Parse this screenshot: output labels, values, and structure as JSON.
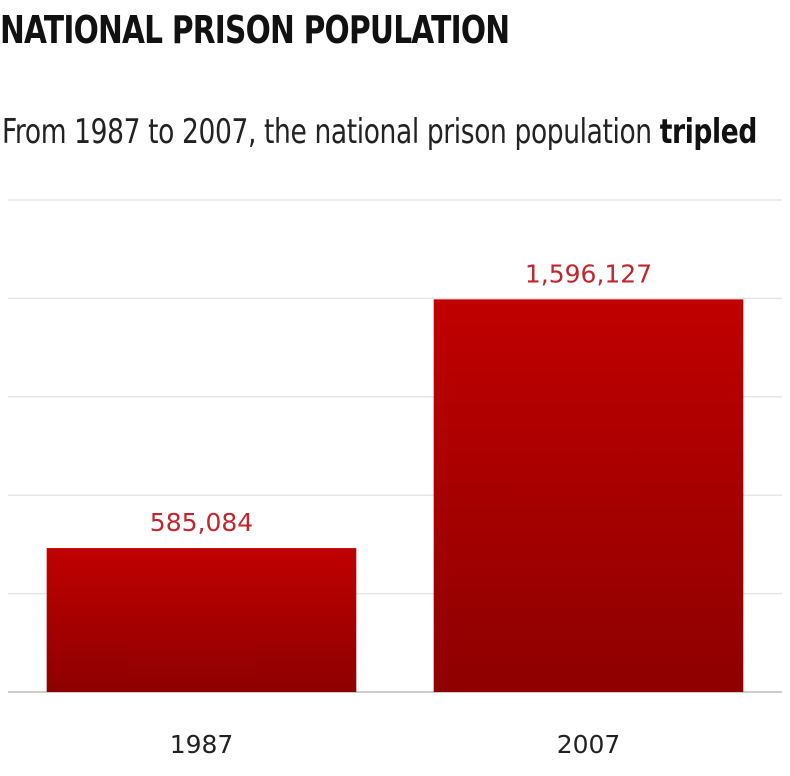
{
  "header": {
    "title": "NATIONAL PRISON POPULATION",
    "subtitle_prefix": "From 1987 to 2007, the national prison population ",
    "subtitle_emphasis": "tripled"
  },
  "colors": {
    "bar_top": "#c00000",
    "bar_bottom": "#8e0000",
    "value_label": "#c0262d",
    "gridline": "#e6e6e6",
    "baseline": "#cccccc",
    "tick_text": "#222222"
  },
  "chart_data": {
    "type": "bar",
    "title": "NATIONAL PRISON POPULATION",
    "subtitle": "From 1987 to 2007, the national prison population tripled",
    "categories": [
      "1987",
      "2007"
    ],
    "values": [
      585084,
      1596127
    ],
    "value_labels": [
      "585,084",
      "1,596,127"
    ],
    "xlabel": "",
    "ylabel": "",
    "ylim": [
      0,
      2000000
    ],
    "y_gridlines": [
      400000,
      800000,
      1200000,
      1600000,
      2000000
    ],
    "grid": true,
    "legend": "none"
  }
}
